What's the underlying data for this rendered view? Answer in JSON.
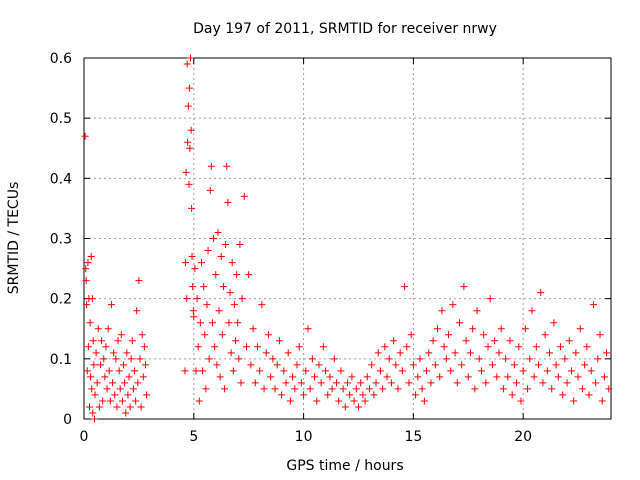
{
  "chart_data": {
    "type": "scatter",
    "title": "Day 197 of 2011, SRMTID for receiver nrwy",
    "xlabel": "GPS time / hours",
    "ylabel": "SRMTID / TECUs",
    "xlim": [
      0,
      24
    ],
    "ylim": [
      0,
      0.6
    ],
    "xticks": [
      0,
      5,
      10,
      15,
      20
    ],
    "yticks": [
      0,
      0.1,
      0.2,
      0.3,
      0.4,
      0.5,
      0.6
    ],
    "ytick_labels": [
      "0",
      "0.1",
      "0.2",
      "0.3",
      "0.4",
      "0.5",
      "0.6"
    ],
    "grid": true,
    "marker": "+",
    "color": "#ff0000",
    "series": [
      {
        "name": "SRMTID",
        "x": [
          0.05,
          0.08,
          0.1,
          0.12,
          0.15,
          0.18,
          0.2,
          0.22,
          0.25,
          0.28,
          0.3,
          0.33,
          0.35,
          0.38,
          0.4,
          0.42,
          0.45,
          0.48,
          0.5,
          0.55,
          0.6,
          0.65,
          0.7,
          0.75,
          0.8,
          0.85,
          0.9,
          0.95,
          1.0,
          1.05,
          1.1,
          1.15,
          1.2,
          1.25,
          1.3,
          1.35,
          1.4,
          1.45,
          1.5,
          1.55,
          1.6,
          1.65,
          1.7,
          1.75,
          1.8,
          1.85,
          1.9,
          1.95,
          2.0,
          2.05,
          2.1,
          2.15,
          2.2,
          2.25,
          2.3,
          2.35,
          2.4,
          2.45,
          2.5,
          2.55,
          2.6,
          2.65,
          2.7,
          2.75,
          2.8,
          2.85,
          4.6,
          4.62,
          4.65,
          4.68,
          4.7,
          4.72,
          4.75,
          4.78,
          4.8,
          4.82,
          4.85,
          4.88,
          4.9,
          4.92,
          4.95,
          4.98,
          5.0,
          5.05,
          5.1,
          5.15,
          5.2,
          5.25,
          5.3,
          5.35,
          5.4,
          5.45,
          5.5,
          5.55,
          5.6,
          5.65,
          5.7,
          5.75,
          5.8,
          5.85,
          5.9,
          5.95,
          6.0,
          6.05,
          6.1,
          6.15,
          6.2,
          6.25,
          6.3,
          6.35,
          6.4,
          6.45,
          6.5,
          6.55,
          6.6,
          6.65,
          6.7,
          6.75,
          6.8,
          6.85,
          6.9,
          6.95,
          7.0,
          7.05,
          7.1,
          7.15,
          7.2,
          7.3,
          7.4,
          7.5,
          7.6,
          7.7,
          7.8,
          7.9,
          8.0,
          8.1,
          8.2,
          8.3,
          8.4,
          8.5,
          8.6,
          8.7,
          8.8,
          8.9,
          9.0,
          9.1,
          9.2,
          9.3,
          9.4,
          9.5,
          9.6,
          9.7,
          9.8,
          9.9,
          10.0,
          10.1,
          10.2,
          10.3,
          10.4,
          10.5,
          10.6,
          10.7,
          10.8,
          10.9,
          11.0,
          11.1,
          11.2,
          11.3,
          11.4,
          11.5,
          11.6,
          11.7,
          11.8,
          11.9,
          12.0,
          12.1,
          12.2,
          12.3,
          12.4,
          12.5,
          12.6,
          12.7,
          12.8,
          12.9,
          13.0,
          13.1,
          13.2,
          13.3,
          13.4,
          13.5,
          13.6,
          13.7,
          13.8,
          13.9,
          14.0,
          14.1,
          14.2,
          14.3,
          14.4,
          14.5,
          14.6,
          14.7,
          14.8,
          14.9,
          15.0,
          15.1,
          15.2,
          15.3,
          15.4,
          15.5,
          15.6,
          15.7,
          15.8,
          15.9,
          16.0,
          16.1,
          16.2,
          16.3,
          16.4,
          16.5,
          16.6,
          16.7,
          16.8,
          16.9,
          17.0,
          17.1,
          17.2,
          17.3,
          17.4,
          17.5,
          17.6,
          17.7,
          17.8,
          17.9,
          18.0,
          18.1,
          18.2,
          18.3,
          18.4,
          18.5,
          18.6,
          18.7,
          18.8,
          18.9,
          19.0,
          19.1,
          19.2,
          19.3,
          19.4,
          19.5,
          19.6,
          19.7,
          19.8,
          19.9,
          20.0,
          20.1,
          20.2,
          20.3,
          20.4,
          20.5,
          20.6,
          20.7,
          20.8,
          20.9,
          21.0,
          21.1,
          21.2,
          21.3,
          21.4,
          21.5,
          21.6,
          21.7,
          21.8,
          21.9,
          22.0,
          22.1,
          22.2,
          22.3,
          22.4,
          22.5,
          22.6,
          22.7,
          22.8,
          22.9,
          23.0,
          23.1,
          23.2,
          23.3,
          23.4,
          23.5,
          23.6,
          23.7,
          23.8,
          23.9
        ],
        "y": [
          0.47,
          0.25,
          0.23,
          0.19,
          0.08,
          0.26,
          0.12,
          0.2,
          0.02,
          0.16,
          0.07,
          0.27,
          0.05,
          0.2,
          0.01,
          0.13,
          0.09,
          0.0,
          0.04,
          0.11,
          0.06,
          0.15,
          0.02,
          0.09,
          0.13,
          0.03,
          0.1,
          0.07,
          0.12,
          0.05,
          0.15,
          0.08,
          0.03,
          0.19,
          0.06,
          0.11,
          0.04,
          0.1,
          0.02,
          0.13,
          0.08,
          0.05,
          0.14,
          0.03,
          0.09,
          0.06,
          0.01,
          0.11,
          0.04,
          0.07,
          0.02,
          0.1,
          0.13,
          0.05,
          0.08,
          0.03,
          0.18,
          0.06,
          0.23,
          0.1,
          0.02,
          0.14,
          0.07,
          0.12,
          0.09,
          0.04,
          0.08,
          0.26,
          0.41,
          0.2,
          0.59,
          0.46,
          0.52,
          0.39,
          0.55,
          0.45,
          0.6,
          0.48,
          0.35,
          0.27,
          0.22,
          0.18,
          0.17,
          0.25,
          0.08,
          0.2,
          0.12,
          0.03,
          0.16,
          0.26,
          0.08,
          0.22,
          0.14,
          0.05,
          0.19,
          0.28,
          0.1,
          0.38,
          0.42,
          0.16,
          0.3,
          0.12,
          0.24,
          0.09,
          0.31,
          0.18,
          0.07,
          0.27,
          0.14,
          0.22,
          0.05,
          0.29,
          0.42,
          0.36,
          0.16,
          0.21,
          0.11,
          0.26,
          0.08,
          0.19,
          0.13,
          0.24,
          0.16,
          0.1,
          0.29,
          0.06,
          0.2,
          0.37,
          0.12,
          0.24,
          0.09,
          0.15,
          0.06,
          0.12,
          0.08,
          0.19,
          0.05,
          0.11,
          0.14,
          0.07,
          0.1,
          0.05,
          0.09,
          0.13,
          0.04,
          0.08,
          0.06,
          0.11,
          0.03,
          0.07,
          0.05,
          0.09,
          0.12,
          0.06,
          0.04,
          0.08,
          0.15,
          0.05,
          0.1,
          0.07,
          0.03,
          0.09,
          0.06,
          0.12,
          0.08,
          0.04,
          0.07,
          0.05,
          0.1,
          0.06,
          0.03,
          0.08,
          0.05,
          0.02,
          0.06,
          0.04,
          0.07,
          0.03,
          0.05,
          0.02,
          0.06,
          0.04,
          0.03,
          0.07,
          0.05,
          0.09,
          0.04,
          0.06,
          0.11,
          0.08,
          0.05,
          0.12,
          0.07,
          0.1,
          0.06,
          0.13,
          0.09,
          0.05,
          0.11,
          0.08,
          0.22,
          0.12,
          0.06,
          0.14,
          0.09,
          0.04,
          0.07,
          0.1,
          0.05,
          0.03,
          0.08,
          0.11,
          0.06,
          0.13,
          0.09,
          0.15,
          0.07,
          0.18,
          0.12,
          0.1,
          0.14,
          0.08,
          0.19,
          0.11,
          0.06,
          0.16,
          0.09,
          0.22,
          0.13,
          0.07,
          0.11,
          0.15,
          0.05,
          0.18,
          0.1,
          0.08,
          0.14,
          0.06,
          0.12,
          0.2,
          0.09,
          0.13,
          0.07,
          0.11,
          0.15,
          0.05,
          0.1,
          0.07,
          0.13,
          0.04,
          0.09,
          0.06,
          0.12,
          0.03,
          0.08,
          0.15,
          0.05,
          0.1,
          0.18,
          0.07,
          0.12,
          0.09,
          0.21,
          0.06,
          0.14,
          0.08,
          0.11,
          0.05,
          0.16,
          0.09,
          0.07,
          0.12,
          0.04,
          0.1,
          0.06,
          0.13,
          0.08,
          0.03,
          0.11,
          0.07,
          0.15,
          0.05,
          0.09,
          0.12,
          0.04,
          0.08,
          0.19,
          0.06,
          0.1,
          0.14,
          0.03,
          0.07,
          0.11,
          0.05
        ]
      }
    ]
  }
}
